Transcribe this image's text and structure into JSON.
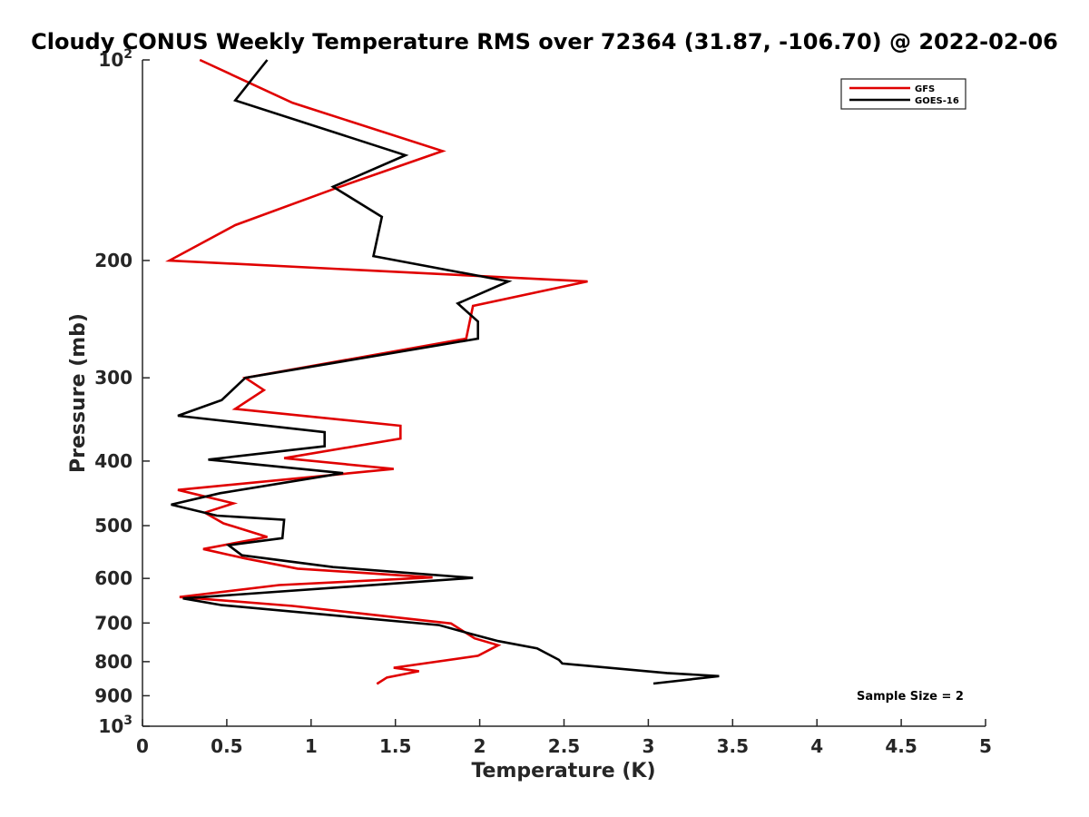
{
  "chart_data": {
    "type": "line",
    "title": "Cloudy CONUS Weekly Temperature RMS over 72364 (31.87, -106.70) @ 2022-02-06",
    "xlabel": "Temperature (K)",
    "ylabel": "Pressure (mb)",
    "xlim": [
      0,
      5
    ],
    "ylim": [
      100,
      1000
    ],
    "y_scale": "log",
    "y_reversed": true,
    "grid": false,
    "legend_position": "top-right",
    "x_ticks": [
      "0",
      "0.5",
      "1",
      "1.5",
      "2",
      "2.5",
      "3",
      "3.5",
      "4",
      "4.5",
      "5"
    ],
    "y_ticks": [
      {
        "value": 100,
        "label": "10",
        "sup": "2"
      },
      {
        "value": 200,
        "label": "200",
        "sup": ""
      },
      {
        "value": 300,
        "label": "300",
        "sup": ""
      },
      {
        "value": 400,
        "label": "400",
        "sup": ""
      },
      {
        "value": 500,
        "label": "500",
        "sup": ""
      },
      {
        "value": 600,
        "label": "600",
        "sup": ""
      },
      {
        "value": 700,
        "label": "700",
        "sup": ""
      },
      {
        "value": 800,
        "label": "800",
        "sup": ""
      },
      {
        "value": 900,
        "label": "900",
        "sup": ""
      },
      {
        "value": 1000,
        "label": "10",
        "sup": "3"
      }
    ],
    "series": [
      {
        "name": "GFS",
        "color": "#e00000",
        "points": [
          [
            0.34,
            100
          ],
          [
            0.89,
            116
          ],
          [
            1.78,
            137
          ],
          [
            1.14,
            156
          ],
          [
            0.55,
            177
          ],
          [
            0.16,
            200
          ],
          [
            2.64,
            215
          ],
          [
            1.96,
            234
          ],
          [
            1.92,
            262
          ],
          [
            0.61,
            300
          ],
          [
            0.72,
            313
          ],
          [
            0.55,
            334
          ],
          [
            1.53,
            354
          ],
          [
            1.53,
            370
          ],
          [
            0.84,
            396
          ],
          [
            1.49,
            411
          ],
          [
            0.21,
            442
          ],
          [
            0.54,
            463
          ],
          [
            0.37,
            478
          ],
          [
            0.48,
            496
          ],
          [
            0.74,
            520
          ],
          [
            0.36,
            542
          ],
          [
            0.61,
            560
          ],
          [
            0.92,
            580
          ],
          [
            1.72,
            598
          ],
          [
            0.81,
            614
          ],
          [
            0.22,
            640
          ],
          [
            0.89,
            660
          ],
          [
            1.83,
            701
          ],
          [
            1.97,
            738
          ],
          [
            2.11,
            756
          ],
          [
            1.99,
            784
          ],
          [
            1.49,
            817
          ],
          [
            1.64,
            827
          ],
          [
            1.45,
            845
          ],
          [
            1.39,
            864
          ]
        ]
      },
      {
        "name": "GOES-16",
        "color": "#000000",
        "points": [
          [
            0.74,
            100
          ],
          [
            0.55,
            115
          ],
          [
            1.56,
            139
          ],
          [
            1.13,
            155
          ],
          [
            1.42,
            172
          ],
          [
            1.37,
            197
          ],
          [
            2.17,
            215
          ],
          [
            1.87,
            232
          ],
          [
            1.99,
            247
          ],
          [
            1.99,
            262
          ],
          [
            0.61,
            300
          ],
          [
            0.47,
            324
          ],
          [
            0.21,
            342
          ],
          [
            1.08,
            362
          ],
          [
            1.08,
            380
          ],
          [
            0.39,
            398
          ],
          [
            1.19,
            417
          ],
          [
            0.46,
            447
          ],
          [
            0.17,
            465
          ],
          [
            0.44,
            483
          ],
          [
            0.84,
            490
          ],
          [
            0.83,
            522
          ],
          [
            0.51,
            535
          ],
          [
            0.59,
            554
          ],
          [
            1.13,
            577
          ],
          [
            1.96,
            599
          ],
          [
            0.24,
            643
          ],
          [
            0.47,
            658
          ],
          [
            1.76,
            705
          ],
          [
            1.95,
            727
          ],
          [
            2.11,
            745
          ],
          [
            2.34,
            764
          ],
          [
            2.47,
            795
          ],
          [
            2.49,
            805
          ],
          [
            3.11,
            832
          ],
          [
            3.42,
            841
          ],
          [
            3.03,
            863
          ]
        ]
      }
    ],
    "annotations": [
      {
        "text": "Sample Size = 2",
        "position": "bottom-right"
      }
    ]
  }
}
